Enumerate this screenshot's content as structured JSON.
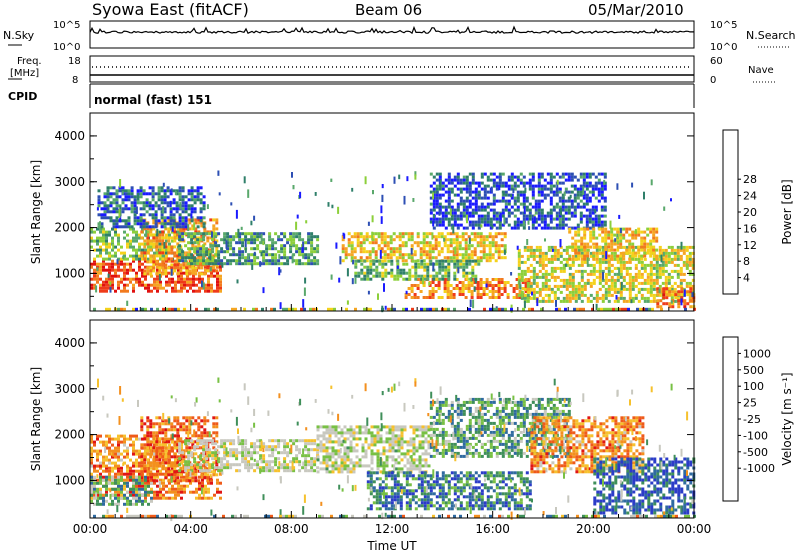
{
  "header": {
    "station": "Syowa East (fitACF)",
    "beam": "Beam 06",
    "date": "05/Mar/2010"
  },
  "top_panels": {
    "nsky_label": "N.Sky",
    "nsky_ticks": [
      "10^5",
      "10^0"
    ],
    "nsearch_label": "N.Search",
    "nsearch_ticks": [
      "10^5",
      "10^0"
    ],
    "freq_label_1": "Freq.",
    "freq_label_2": "[MHz]",
    "freq_ticks": [
      "18",
      "8"
    ],
    "nave_label": "Nave",
    "nave_ticks": [
      "60",
      "0"
    ],
    "cpid_label": "CPID",
    "cpid_value": "normal (fast) 151"
  },
  "chart_data": [
    {
      "type": "heatmap",
      "title": "",
      "xlabel": "",
      "ylabel": "Slant Range [km]",
      "xlim": [
        0,
        24
      ],
      "ylim": [
        180,
        4500
      ],
      "yticks": [
        "1000",
        "2000",
        "3000",
        "4000"
      ],
      "colorbar_label": "Power [dB]",
      "colorbar_ticks": [
        "4",
        "8",
        "12",
        "16",
        "20",
        "24",
        "28"
      ],
      "colorbar_colors": [
        "#1a1aff",
        "#2d4fb4",
        "#2f7f6a",
        "#59a86b",
        "#8ccf3a",
        "#f4d21c",
        "#f5a623",
        "#f27a1e",
        "#ef3b1a",
        "#e01010"
      ],
      "regions": [
        {
          "t0": 0.0,
          "t1": 5.2,
          "r0": 600,
          "r1": 1300,
          "level": 0.82
        },
        {
          "t0": 0.0,
          "t1": 3.6,
          "r0": 1300,
          "r1": 2000,
          "level": 0.42
        },
        {
          "t0": 2.0,
          "t1": 5.0,
          "r0": 1000,
          "r1": 2200,
          "level": 0.68
        },
        {
          "t0": 0.3,
          "t1": 4.5,
          "r0": 2000,
          "r1": 2900,
          "level": 0.18
        },
        {
          "t0": 3.5,
          "t1": 9.0,
          "r0": 1200,
          "r1": 1900,
          "level": 0.32
        },
        {
          "t0": 10.0,
          "t1": 16.5,
          "r0": 1300,
          "r1": 1900,
          "level": 0.58
        },
        {
          "t0": 12.5,
          "t1": 17.5,
          "r0": 500,
          "r1": 900,
          "level": 0.72
        },
        {
          "t0": 10.5,
          "t1": 15.5,
          "r0": 900,
          "r1": 1300,
          "level": 0.38
        },
        {
          "t0": 13.5,
          "t1": 20.5,
          "r0": 2000,
          "r1": 3200,
          "level": 0.15
        },
        {
          "t0": 17.0,
          "t1": 24.0,
          "r0": 400,
          "r1": 1600,
          "level": 0.52
        },
        {
          "t0": 19.0,
          "t1": 22.5,
          "r0": 1300,
          "r1": 2000,
          "level": 0.6
        },
        {
          "t0": 22.5,
          "t1": 24.0,
          "r0": 250,
          "r1": 700,
          "level": 0.74
        }
      ]
    },
    {
      "type": "heatmap",
      "title": "",
      "xlabel": "Time UT",
      "ylabel": "Slant Range [km]",
      "xlim": [
        0,
        24
      ],
      "ylim": [
        180,
        4500
      ],
      "yticks": [
        "1000",
        "2000",
        "3000",
        "4000"
      ],
      "xticks": [
        "00:00",
        "04:00",
        "08:00",
        "12:00",
        "16:00",
        "20:00",
        "00:00"
      ],
      "colorbar_label": "Velocity [m s⁻¹]",
      "colorbar_ticks": [
        "1000",
        "500",
        "100",
        "25",
        "-25",
        "-100",
        "-500",
        "-1000"
      ],
      "colorbar_colors": [
        "#2b3cc8",
        "#2f6aa0",
        "#3f8f5a",
        "#78c044",
        "#c8c8bf",
        "#c8c8bf",
        "#f6c12d",
        "#f3901e",
        "#ef5a1a",
        "#e01515"
      ],
      "regions": [
        {
          "t0": 0.0,
          "t1": 5.2,
          "r0": 600,
          "r1": 1300,
          "level": 0.8
        },
        {
          "t0": 0.0,
          "t1": 3.6,
          "r0": 1300,
          "r1": 2000,
          "level": 0.75
        },
        {
          "t0": 2.0,
          "t1": 5.0,
          "r0": 1000,
          "r1": 2400,
          "level": 0.82
        },
        {
          "t0": 0.0,
          "t1": 2.5,
          "r0": 500,
          "r1": 1100,
          "level": 0.3
        },
        {
          "t0": 3.5,
          "t1": 9.0,
          "r0": 1200,
          "r1": 1900,
          "level": 0.48
        },
        {
          "t0": 9.0,
          "t1": 13.5,
          "r0": 1200,
          "r1": 2200,
          "level": 0.47
        },
        {
          "t0": 11.0,
          "t1": 17.5,
          "r0": 400,
          "r1": 1200,
          "level": 0.2
        },
        {
          "t0": 13.5,
          "t1": 19.0,
          "r0": 1500,
          "r1": 2800,
          "level": 0.28
        },
        {
          "t0": 17.5,
          "t1": 22.0,
          "r0": 1200,
          "r1": 2400,
          "level": 0.75
        },
        {
          "t0": 20.0,
          "t1": 24.0,
          "r0": 300,
          "r1": 1500,
          "level": 0.12
        }
      ]
    }
  ]
}
